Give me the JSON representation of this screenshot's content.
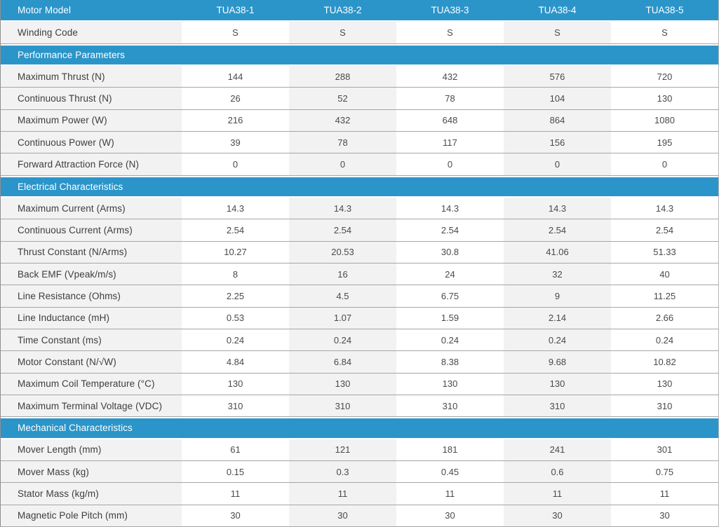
{
  "table": {
    "header": {
      "label": "Motor Model",
      "models": [
        "TUA38-1",
        "TUA38-2",
        "TUA38-3",
        "TUA38-4",
        "TUA38-5"
      ]
    },
    "winding": {
      "label": "Winding Code",
      "values": [
        "S",
        "S",
        "S",
        "S",
        "S"
      ]
    },
    "sections": [
      {
        "title": "Performance Parameters",
        "rows": [
          {
            "label": "Maximum Thrust (N)",
            "values": [
              "144",
              "288",
              "432",
              "576",
              "720"
            ]
          },
          {
            "label": "Continuous Thrust (N)",
            "values": [
              "26",
              "52",
              "78",
              "104",
              "130"
            ]
          },
          {
            "label": "Maximum Power (W)",
            "values": [
              "216",
              "432",
              "648",
              "864",
              "1080"
            ]
          },
          {
            "label": "Continuous Power (W)",
            "values": [
              "39",
              "78",
              "117",
              "156",
              "195"
            ]
          },
          {
            "label": "Forward Attraction Force (N)",
            "values": [
              "0",
              "0",
              "0",
              "0",
              "0"
            ]
          }
        ]
      },
      {
        "title": "Electrical Characteristics",
        "rows": [
          {
            "label": "Maximum Current (Arms)",
            "values": [
              "14.3",
              "14.3",
              "14.3",
              "14.3",
              "14.3"
            ]
          },
          {
            "label": "Continuous Current (Arms)",
            "values": [
              "2.54",
              "2.54",
              "2.54",
              "2.54",
              "2.54"
            ]
          },
          {
            "label": "Thrust Constant (N/Arms)",
            "values": [
              "10.27",
              "20.53",
              "30.8",
              "41.06",
              "51.33"
            ]
          },
          {
            "label": "Back EMF (Vpeak/m/s)",
            "values": [
              "8",
              "16",
              "24",
              "32",
              "40"
            ]
          },
          {
            "label": "Line Resistance (Ohms)",
            "values": [
              "2.25",
              "4.5",
              "6.75",
              "9",
              "11.25"
            ]
          },
          {
            "label": "Line Inductance (mH)",
            "values": [
              "0.53",
              "1.07",
              "1.59",
              "2.14",
              "2.66"
            ]
          },
          {
            "label": "Time Constant (ms)",
            "values": [
              "0.24",
              "0.24",
              "0.24",
              "0.24",
              "0.24"
            ]
          },
          {
            "label": "Motor Constant (N/√W)",
            "values": [
              "4.84",
              "6.84",
              "8.38",
              "9.68",
              "10.82"
            ]
          },
          {
            "label": "Maximum Coil Temperature (°C)",
            "values": [
              "130",
              "130",
              "130",
              "130",
              "130"
            ]
          },
          {
            "label": "Maximum Terminal Voltage (VDC)",
            "values": [
              "310",
              "310",
              "310",
              "310",
              "310"
            ]
          }
        ]
      },
      {
        "title": "Mechanical Characteristics",
        "rows": [
          {
            "label": "Mover Length (mm)",
            "values": [
              "61",
              "121",
              "181",
              "241",
              "301"
            ]
          },
          {
            "label": "Mover Mass (kg)",
            "values": [
              "0.15",
              "0.3",
              "0.45",
              "0.6",
              "0.75"
            ]
          },
          {
            "label": "Stator Mass (kg/m)",
            "values": [
              "11",
              "11",
              "11",
              "11",
              "11"
            ]
          },
          {
            "label": "Magnetic Pole Pitch (mm)",
            "values": [
              "30",
              "30",
              "30",
              "30",
              "30"
            ]
          }
        ]
      }
    ],
    "colors": {
      "accent_blue": "#2b95c9",
      "alt_row_gray": "#f2f2f2",
      "border_gray": "#a6a6a6"
    }
  }
}
